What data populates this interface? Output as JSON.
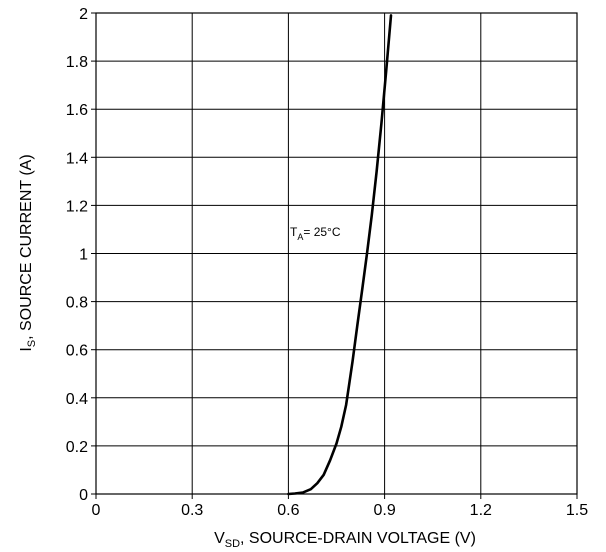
{
  "chart_data": {
    "type": "line",
    "xlabel": {
      "main": "V",
      "sub": "SD",
      "rest": ", SOURCE-DRAIN VOLTAGE (V)"
    },
    "ylabel": {
      "main": "I",
      "sub": "S",
      "rest": ", SOURCE CURRENT (A)"
    },
    "xlim": [
      0,
      1.5
    ],
    "ylim": [
      0,
      2
    ],
    "xticks": [
      0,
      0.3,
      0.6,
      0.9,
      1.2,
      1.5
    ],
    "xtick_labels": [
      "0",
      "0.3",
      "0.6",
      "0.9",
      "1.2",
      "1.5"
    ],
    "yticks": [
      0,
      0.2,
      0.4,
      0.6,
      0.8,
      1.0,
      1.2,
      1.4,
      1.6,
      1.8,
      2.0
    ],
    "ytick_labels": [
      "0",
      "0.2",
      "0.4",
      "0.6",
      "0.8",
      "1",
      "1.2",
      "1.4",
      "1.6",
      "1.8",
      "2"
    ],
    "grid": true,
    "annotation": {
      "main": "T",
      "sub": "A",
      "rest": "= 25°C"
    },
    "series": [
      {
        "x": [
          0.6,
          0.62,
          0.645,
          0.67,
          0.69,
          0.71,
          0.73,
          0.75,
          0.765,
          0.78,
          0.79,
          0.8,
          0.815,
          0.83,
          0.845,
          0.86,
          0.875,
          0.89,
          0.905,
          0.92
        ],
        "y": [
          0.0,
          0.002,
          0.006,
          0.02,
          0.045,
          0.08,
          0.14,
          0.21,
          0.28,
          0.37,
          0.46,
          0.55,
          0.7,
          0.85,
          1.0,
          1.16,
          1.34,
          1.54,
          1.76,
          1.99
        ]
      }
    ]
  }
}
